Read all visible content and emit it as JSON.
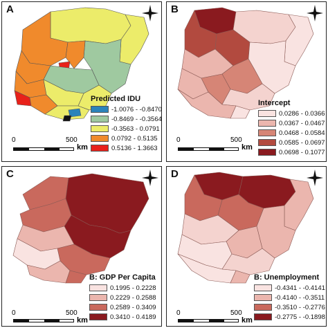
{
  "panels": [
    {
      "id": "A",
      "letter": "A",
      "legend_title": "Predicted IDU",
      "scale_zero": "0",
      "scale_max": "500",
      "scale_unit": "km",
      "classes": [
        {
          "label": "-1.0076 - -0.8470",
          "color": "#2b83ba"
        },
        {
          "label": "-0.8469 - -0.3564",
          "color": "#9fc9a0"
        },
        {
          "label": "-0.3563 - 0.0791",
          "color": "#ecec6a"
        },
        {
          "label": "0.0792 - 0.5135",
          "color": "#f08a2c"
        },
        {
          "label": "0.5136 - 1.3663",
          "color": "#e8211a"
        }
      ]
    },
    {
      "id": "B",
      "letter": "B",
      "legend_title": "Intercept",
      "scale_zero": "0",
      "scale_max": "500",
      "scale_unit": "km",
      "classes": [
        {
          "label": "0.0286 - 0.0366",
          "color": "#f9e3e1"
        },
        {
          "label": "0.0367 - 0.0467",
          "color": "#ebb6ae"
        },
        {
          "label": "0.0468 - 0.0584",
          "color": "#d68576"
        },
        {
          "label": "0.0585 - 0.0697",
          "color": "#b24a3f"
        },
        {
          "label": "0.0698 - 0.1077",
          "color": "#8a1a1f"
        }
      ]
    },
    {
      "id": "C",
      "letter": "C",
      "legend_title": "B: GDP Per Capita",
      "scale_zero": "0",
      "scale_max": "500",
      "scale_unit": "km",
      "classes": [
        {
          "label": "0.1995 - 0.2228",
          "color": "#f9e3e1"
        },
        {
          "label": "0.2229 - 0.2588",
          "color": "#ebb6ae"
        },
        {
          "label": "0.2589 - 0.3409",
          "color": "#c9695d"
        },
        {
          "label": "0.3410 - 0.4189",
          "color": "#8a1a1f"
        }
      ]
    },
    {
      "id": "D",
      "letter": "D",
      "legend_title": "B: Unemployment",
      "scale_zero": "0",
      "scale_max": "500",
      "scale_unit": "km",
      "classes": [
        {
          "label": "-0.4341 - -0.4141",
          "color": "#f9e3e1"
        },
        {
          "label": "-0.4140 - -0.3511",
          "color": "#ebb6ae"
        },
        {
          "label": "-0.3510 - -0.2776",
          "color": "#c9695d"
        },
        {
          "label": "-0.2775 - -0.1898",
          "color": "#8a1a1f"
        }
      ]
    }
  ]
}
